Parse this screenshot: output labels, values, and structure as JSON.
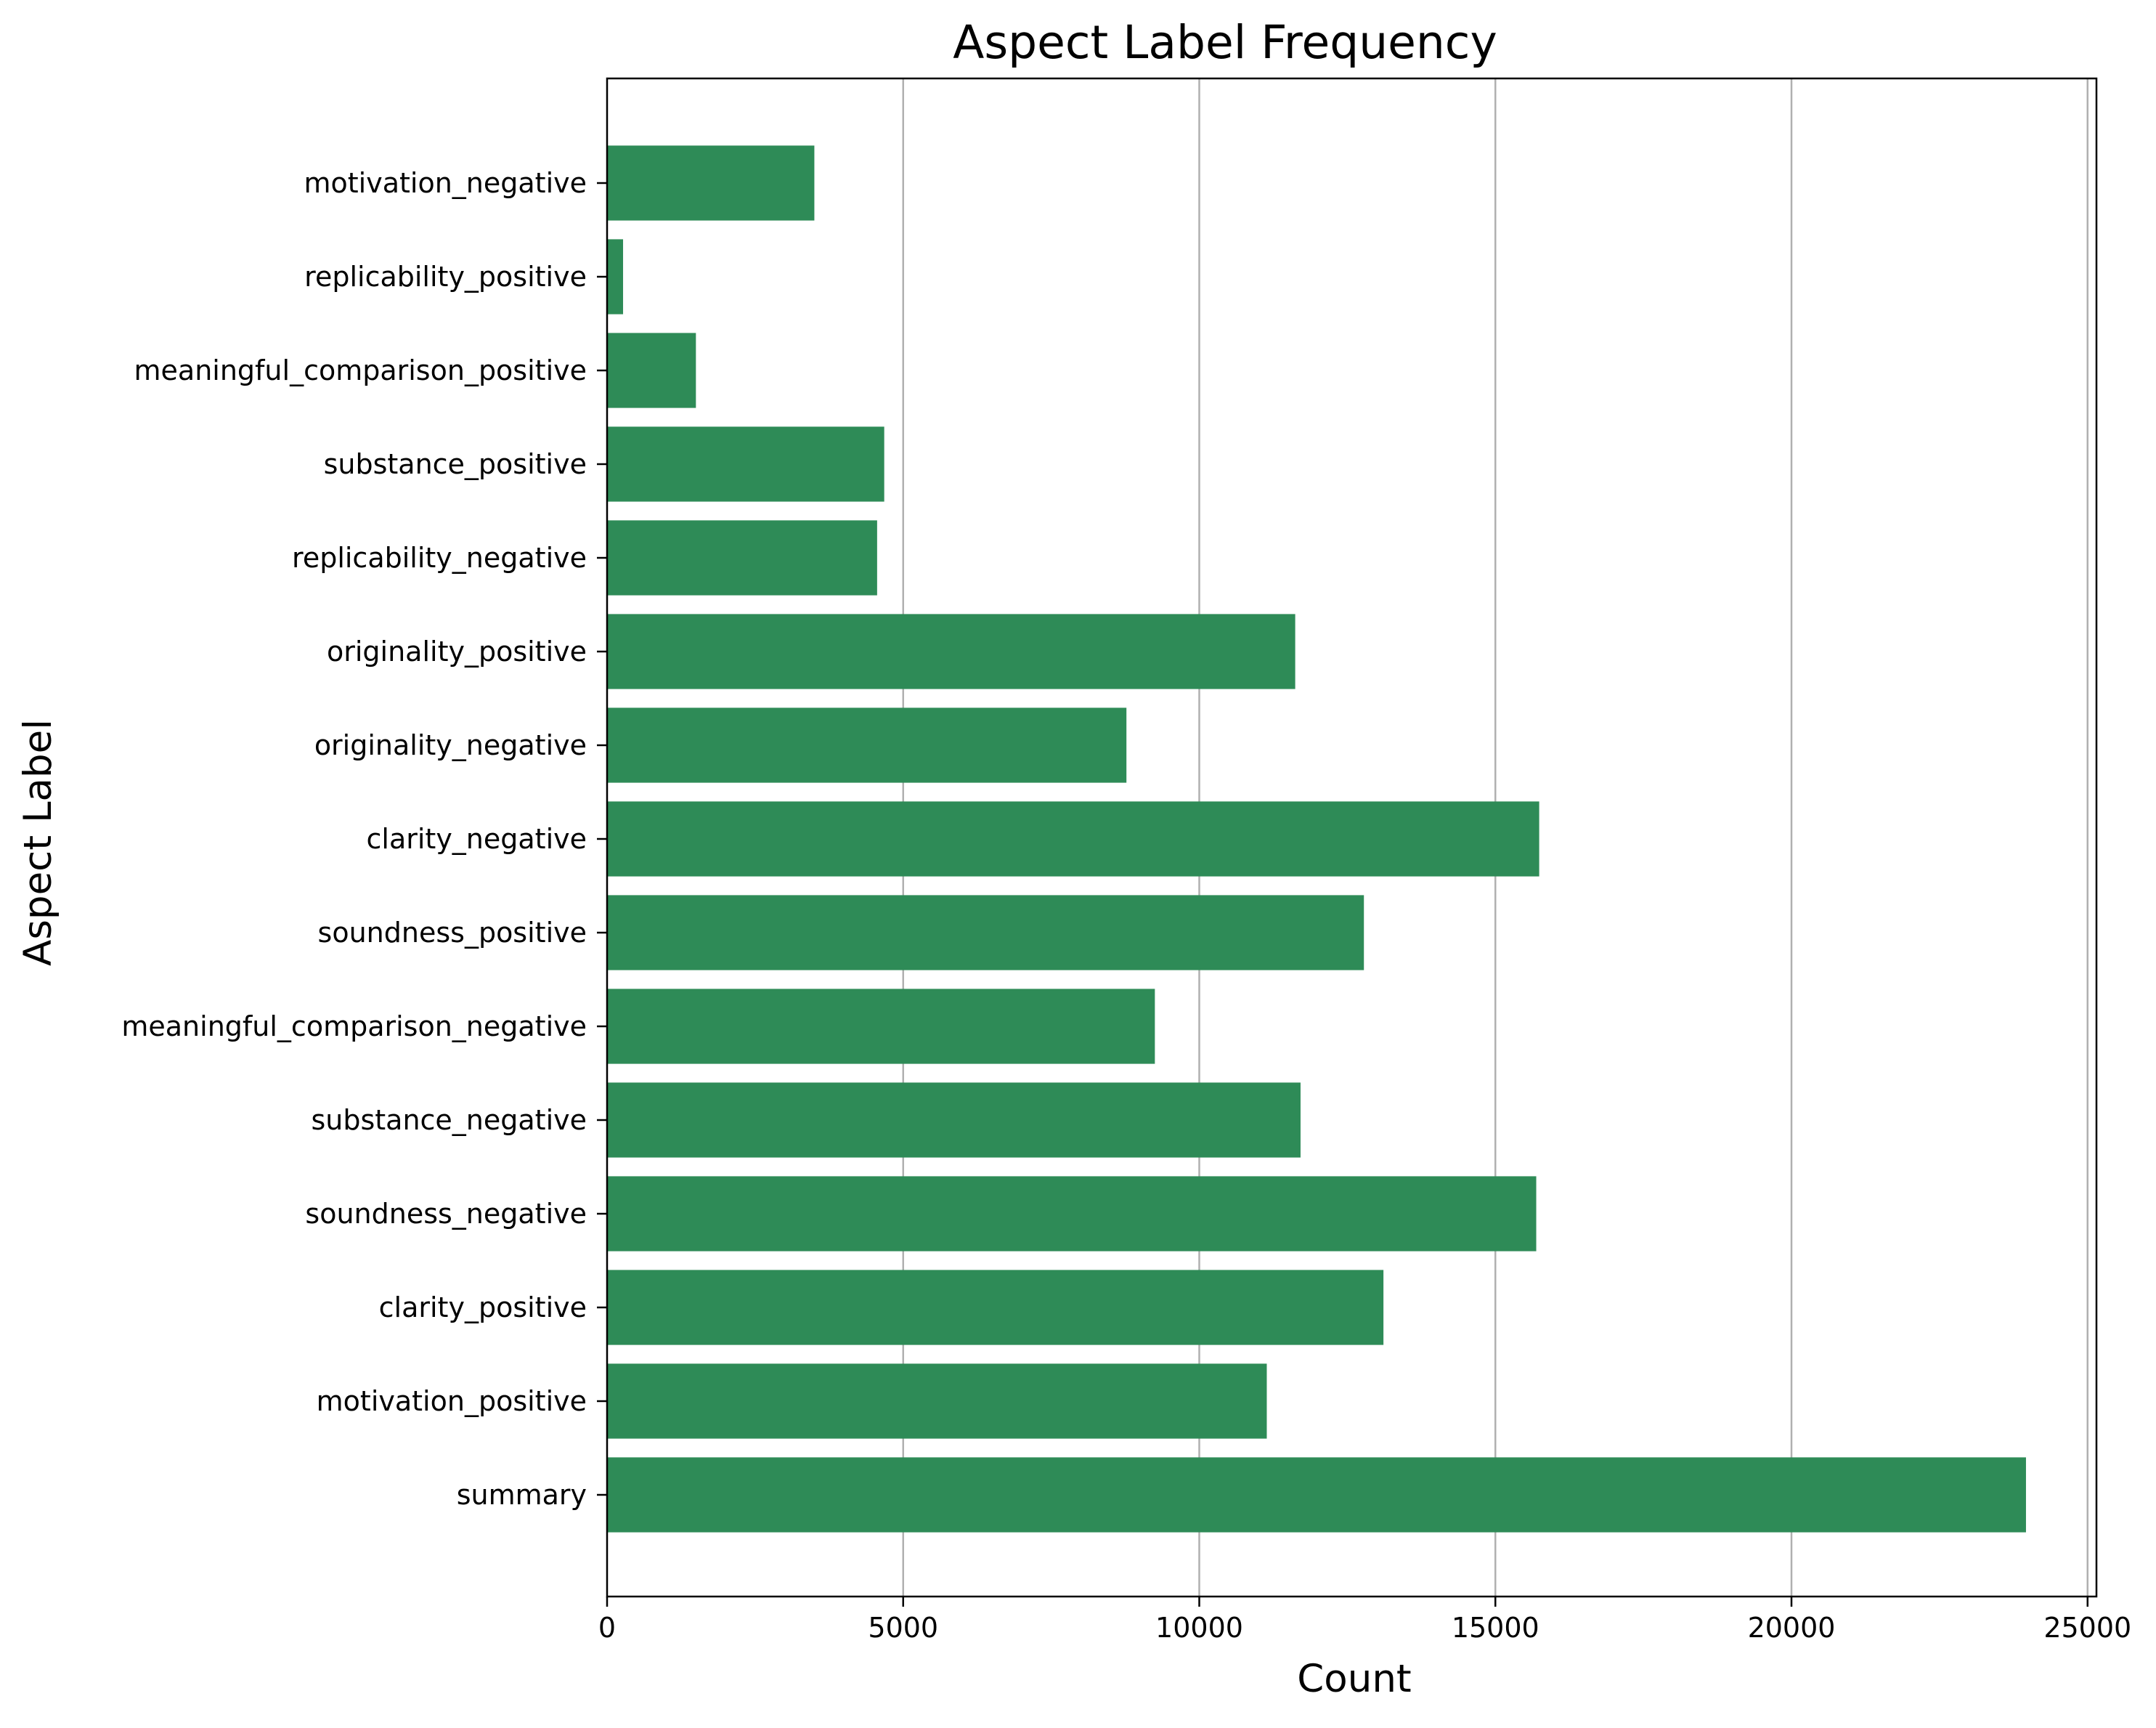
{
  "chart_data": {
    "type": "bar",
    "orientation": "horizontal",
    "title": "Aspect Label Frequency",
    "xlabel": "Count",
    "ylabel": "Aspect Label",
    "xlim": [
      0,
      25150
    ],
    "x_ticks": [
      "0",
      "5000",
      "10000",
      "15000",
      "20000",
      "25000"
    ],
    "grid": "x-axis vertical lines",
    "bar_color": "#2e8b57",
    "grid_color": "#b0b0b0",
    "categories": [
      "motivation_negative",
      "replicability_positive",
      "meaningful_comparison_positive",
      "substance_positive",
      "replicability_negative",
      "originality_positive",
      "originality_negative",
      "clarity_negative",
      "soundness_positive",
      "meaningful_comparison_negative",
      "substance_negative",
      "soundness_negative",
      "clarity_positive",
      "motivation_positive",
      "summary"
    ],
    "values": [
      3500,
      270,
      1500,
      4680,
      4560,
      11620,
      8770,
      15740,
      12780,
      9250,
      11710,
      15690,
      13110,
      11140,
      23960
    ]
  }
}
